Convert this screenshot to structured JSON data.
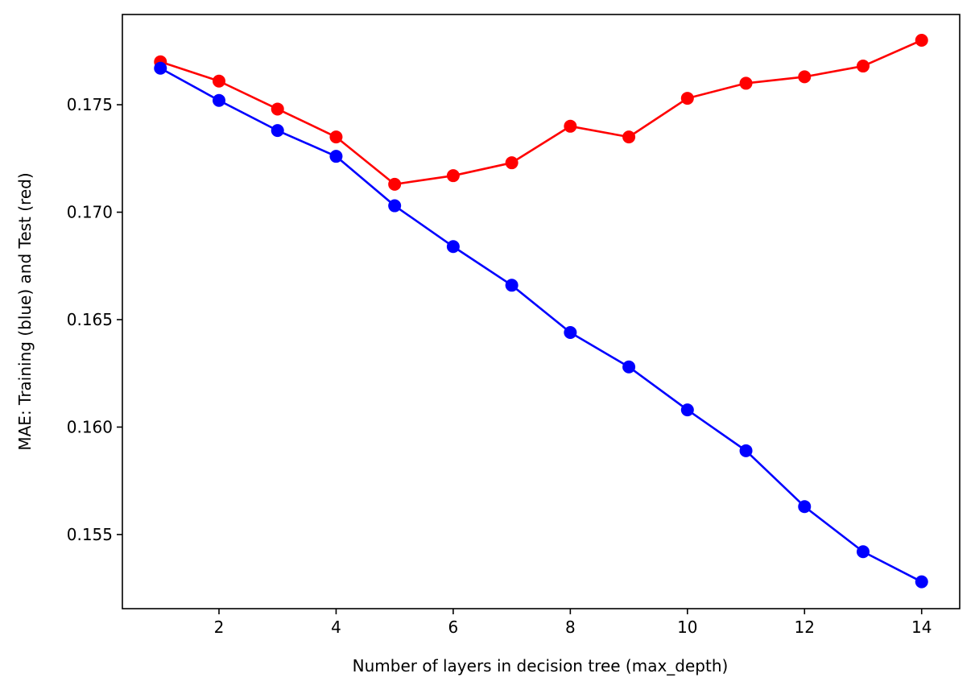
{
  "chart_data": {
    "type": "line",
    "title": "",
    "xlabel": "Number of layers in decision tree (max_depth)",
    "ylabel": "MAE: Training (blue) and Test (red)",
    "xlim": [
      0.35,
      14.65
    ],
    "ylim": [
      0.15155,
      0.1792
    ],
    "xticks": [
      2,
      4,
      6,
      8,
      10,
      12,
      14
    ],
    "yticks": [
      0.155,
      0.16,
      0.165,
      0.17,
      0.175
    ],
    "ytick_labels": [
      "0.155",
      "0.160",
      "0.165",
      "0.170",
      "0.175"
    ],
    "grid": false,
    "legend": "none",
    "x": [
      1,
      2,
      3,
      4,
      5,
      6,
      7,
      8,
      9,
      10,
      11,
      12,
      13,
      14
    ],
    "series": [
      {
        "color": "#ff0000",
        "marker": "circle",
        "values": [
          0.177,
          0.1761,
          0.1748,
          0.1735,
          0.1713,
          0.1717,
          0.1723,
          0.174,
          0.1735,
          0.1753,
          0.176,
          0.1763,
          0.1768,
          0.178
        ]
      },
      {
        "color": "#0000ff",
        "marker": "circle",
        "values": [
          0.1767,
          0.1752,
          0.1738,
          0.1726,
          0.1703,
          0.1684,
          0.1666,
          0.1644,
          0.1628,
          0.1608,
          0.1589,
          0.1563,
          0.1542,
          0.1528
        ]
      }
    ]
  }
}
